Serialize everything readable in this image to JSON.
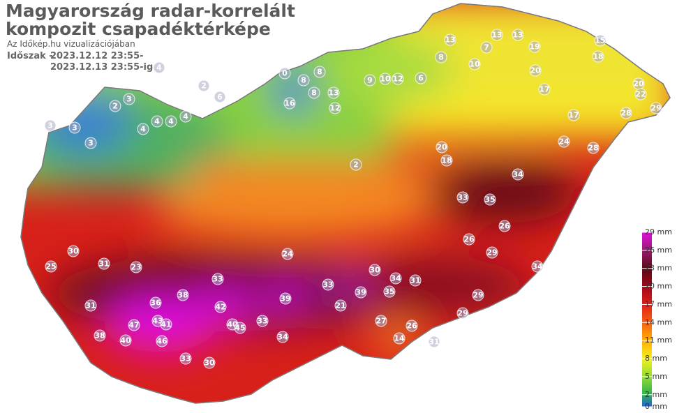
{
  "header": {
    "title_lines": [
      "Magyarország radar-korrelált",
      "kompozit csapadéktérképe"
    ],
    "subtitle": "Az Időkép.hu vizualizációjában",
    "period_label": "Időszak -",
    "period_lines": [
      "2023.12.12 23:55-",
      "2023.12.13 23:55-ig"
    ]
  },
  "legend": {
    "ticks": [
      {
        "value": 29,
        "label": "29 mm"
      },
      {
        "value": 26,
        "label": "26 mm"
      },
      {
        "value": 23,
        "label": "23 mm"
      },
      {
        "value": 20,
        "label": "20 mm"
      },
      {
        "value": 17,
        "label": "17 mm"
      },
      {
        "value": 14,
        "label": "14 mm"
      },
      {
        "value": 11,
        "label": "11 mm"
      },
      {
        "value": 8,
        "label": "8 mm"
      },
      {
        "value": 5,
        "label": "5 mm"
      },
      {
        "value": 2,
        "label": "2 mm"
      },
      {
        "value": 0,
        "label": "0 mm"
      }
    ],
    "colors": [
      "#e010e0",
      "#9a1a70",
      "#5a0a18",
      "#a00818",
      "#e0201a",
      "#f86010",
      "#ffb000",
      "#f4f020",
      "#90dc30",
      "#30b050",
      "#2060e0"
    ]
  },
  "stations": {
    "values": [
      2,
      3,
      3,
      4,
      2,
      6,
      0,
      8,
      8,
      4,
      4,
      4,
      4,
      3,
      3,
      16,
      8,
      13,
      12,
      9,
      10,
      12,
      6,
      8,
      13,
      10,
      7,
      13,
      13,
      19,
      20,
      17,
      17,
      15,
      18,
      20,
      22,
      29,
      28,
      28,
      24,
      34,
      35,
      33,
      29,
      34,
      26,
      26,
      30,
      31,
      34,
      35,
      39,
      33,
      39,
      33,
      42,
      38,
      36,
      47,
      43,
      41,
      46,
      40,
      38,
      40,
      45,
      33,
      34,
      30,
      33,
      14,
      31,
      29,
      29,
      27,
      26,
      21,
      2,
      18,
      20,
      24,
      31,
      30,
      31,
      25,
      23
    ]
  }
}
